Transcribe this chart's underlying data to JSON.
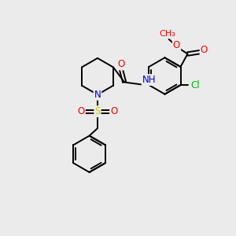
{
  "bg_color": "#ebebeb",
  "bond_color": "#000000",
  "bond_width": 1.4,
  "atom_colors": {
    "O": "#ff0000",
    "N": "#0000cd",
    "Cl": "#00bb00",
    "S": "#cccc00",
    "C": "#000000",
    "H": "#5588aa"
  },
  "fig_w": 3.0,
  "fig_h": 3.0,
  "dpi": 100,
  "xlim": [
    0,
    10
  ],
  "ylim": [
    0,
    10
  ],
  "font_size": 8.5
}
